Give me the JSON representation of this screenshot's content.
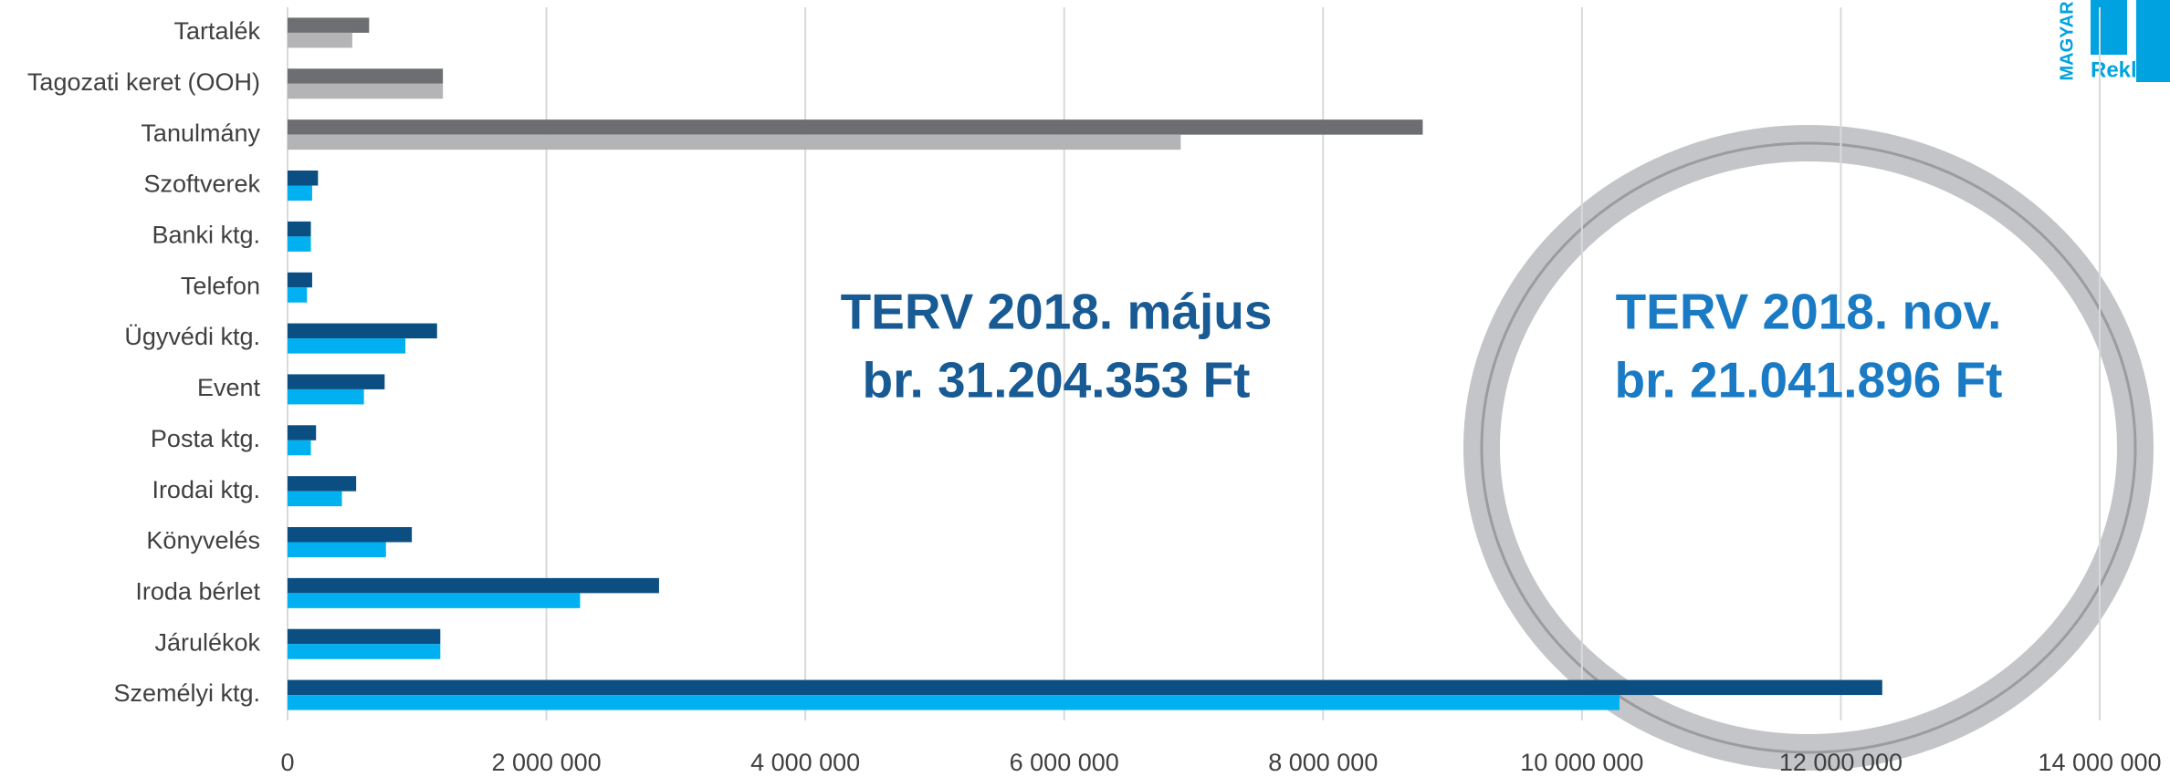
{
  "chart_data": {
    "type": "barh",
    "categories": [
      "Tartalék",
      "Tagozati keret (OOH)",
      "Tanulmány",
      "Szoftverek",
      "Banki ktg.",
      "Telefon",
      "Ügyvédi ktg.",
      "Event",
      "Posta ktg.",
      "Irodai ktg.",
      "Könyvelés",
      "Iroda bérlet",
      "Járulékok",
      "Személyi ktg."
    ],
    "series": [
      {
        "values": [
          630000,
          1200000,
          8770000,
          235000,
          180000,
          190000,
          1155000,
          750000,
          220000,
          530000,
          960000,
          2870000,
          1180000,
          12320000
        ],
        "colors": [
          "#6d6e71",
          "#6d6e71",
          "#6d6e71",
          "#0b4f82",
          "#0b4f82",
          "#0b4f82",
          "#0b4f82",
          "#0b4f82",
          "#0b4f82",
          "#0b4f82",
          "#0b4f82",
          "#0b4f82",
          "#0b4f82",
          "#0b4f82"
        ]
      },
      {
        "values": [
          500000,
          1200000,
          6900000,
          190000,
          180000,
          150000,
          910000,
          590000,
          180000,
          420000,
          760000,
          2260000,
          1180000,
          10290000
        ],
        "colors": [
          "#b4b4b6",
          "#b4b4b6",
          "#b4b4b6",
          "#00b0f0",
          "#00b0f0",
          "#00b0f0",
          "#00b0f0",
          "#00b0f0",
          "#00b0f0",
          "#00b0f0",
          "#00b0f0",
          "#00b0f0",
          "#00b0f0",
          "#00b0f0"
        ]
      }
    ],
    "xlim": [
      0,
      14000000
    ],
    "xticks": [
      0,
      {
        "value": 2000000,
        "label": "2 000 000"
      },
      {
        "value": 4000000,
        "label": "4 000 000"
      },
      {
        "value": 6000000,
        "label": "6 000 000"
      },
      {
        "value": 8000000,
        "label": "8 000 000"
      },
      {
        "value": 10000000,
        "label": "10 000 000"
      },
      {
        "value": 12000000,
        "label": "12 000 000"
      },
      {
        "value": 14000000,
        "label": "14 000 000"
      }
    ],
    "grid": true,
    "annotations": [
      [
        "TERV 2018. május",
        "br. 31.204.353 Ft"
      ],
      [
        "TERV 2018. nov.",
        "br. 21.041.896 Ft"
      ]
    ],
    "logo": {
      "top": "MAGYAR",
      "bottom": "Reklámsz"
    }
  }
}
